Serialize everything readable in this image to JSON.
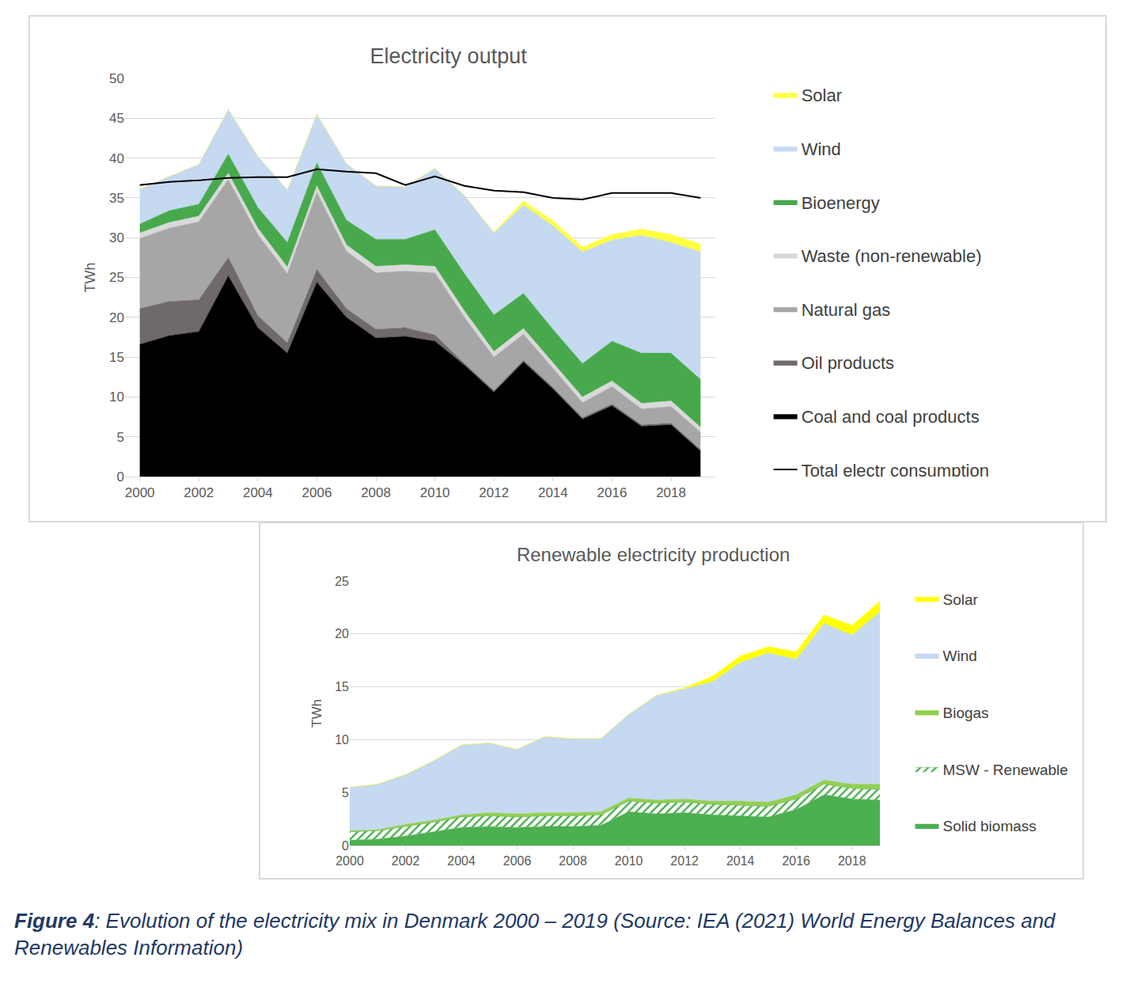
{
  "chart_data": [
    {
      "type": "area",
      "title": "Electricity output",
      "stacked": true,
      "grid": true,
      "legend": "right",
      "ylabel": "TWh",
      "x": [
        2000,
        2001,
        2002,
        2003,
        2004,
        2005,
        2006,
        2007,
        2008,
        2009,
        2010,
        2011,
        2012,
        2013,
        2014,
        2015,
        2016,
        2017,
        2018,
        2019
      ],
      "xlim": [
        1999.5,
        2019.5
      ],
      "xticks": [
        2000,
        2002,
        2004,
        2006,
        2008,
        2010,
        2012,
        2014,
        2016,
        2018
      ],
      "ylim": [
        0,
        50
      ],
      "yticks": [
        0,
        5,
        10,
        15,
        20,
        25,
        30,
        35,
        40,
        45,
        50
      ],
      "series": [
        {
          "name": "Coal and coal products",
          "color": "#000000",
          "values": [
            16.6,
            17.7,
            18.2,
            25.2,
            18.7,
            15.5,
            24.4,
            20.0,
            17.4,
            17.6,
            17.0,
            14.0,
            10.6,
            14.4,
            11.0,
            7.2,
            8.9,
            6.3,
            6.5,
            3.2
          ]
        },
        {
          "name": "Oil products",
          "color": "#6f6969",
          "values": [
            4.5,
            4.3,
            4.0,
            2.3,
            1.5,
            1.3,
            1.6,
            1.1,
            1.1,
            1.1,
            0.8,
            0.2,
            0.2,
            0.2,
            0.2,
            0.2,
            0.2,
            0.2,
            0.2,
            0.2
          ]
        },
        {
          "name": "Natural gas",
          "color": "#a6a6a6",
          "values": [
            8.8,
            9.2,
            9.8,
            9.8,
            10.2,
            8.7,
            9.7,
            7.2,
            7.1,
            7.1,
            7.8,
            5.8,
            4.2,
            3.3,
            2.4,
            1.9,
            2.2,
            2.0,
            2.1,
            2.2
          ]
        },
        {
          "name": "Waste (non-renewable)",
          "color": "#d9d9d9",
          "values": [
            0.7,
            0.7,
            0.7,
            0.8,
            0.8,
            0.8,
            0.8,
            0.8,
            0.8,
            0.8,
            0.8,
            0.8,
            0.7,
            0.7,
            0.7,
            0.7,
            0.7,
            0.7,
            0.7,
            0.6
          ]
        },
        {
          "name": "Bioenergy",
          "color": "#47a94c",
          "values": [
            1.1,
            1.5,
            1.5,
            2.4,
            2.6,
            3.1,
            2.9,
            3.1,
            3.4,
            3.2,
            4.6,
            4.7,
            4.6,
            4.4,
            4.2,
            4.2,
            5.0,
            6.3,
            6.0,
            6.0
          ]
        },
        {
          "name": "Wind",
          "color": "#c5d9f0",
          "values": [
            4.4,
            4.3,
            5.0,
            5.6,
            6.4,
            6.6,
            6.1,
            7.1,
            6.7,
            6.6,
            7.7,
            9.8,
            10.3,
            11.1,
            13.0,
            14.0,
            12.7,
            14.8,
            13.9,
            16.0
          ]
        },
        {
          "name": "Solar",
          "color": "#ffff40",
          "values": [
            0,
            0,
            0,
            0,
            0,
            0,
            0,
            0,
            0,
            0,
            0,
            0,
            0.1,
            0.5,
            0.6,
            0.6,
            0.7,
            0.8,
            1.0,
            1.0
          ]
        },
        {
          "name": "Total electr consumption",
          "type": "line",
          "color": "#000000",
          "values": [
            36.6,
            37.0,
            37.2,
            37.5,
            37.6,
            37.6,
            38.6,
            38.3,
            38.1,
            36.6,
            37.7,
            36.5,
            35.9,
            35.7,
            35.0,
            34.8,
            35.6,
            35.6,
            35.6,
            35.0
          ]
        }
      ]
    },
    {
      "type": "area",
      "title": "Renewable electricity production",
      "stacked": true,
      "grid": true,
      "legend": "right",
      "ylabel": "TWh",
      "x": [
        2000,
        2001,
        2002,
        2003,
        2004,
        2005,
        2006,
        2007,
        2008,
        2009,
        2010,
        2011,
        2012,
        2013,
        2014,
        2015,
        2016,
        2017,
        2018,
        2019
      ],
      "xlim": [
        2000,
        2019
      ],
      "xticks": [
        2000,
        2002,
        2004,
        2006,
        2008,
        2010,
        2012,
        2014,
        2016,
        2018
      ],
      "ylim": [
        0,
        25
      ],
      "yticks": [
        0,
        5,
        10,
        15,
        20,
        25
      ],
      "series": [
        {
          "name": "Solid biomass",
          "color": "#4caf50",
          "values": [
            0.5,
            0.6,
            0.9,
            1.3,
            1.7,
            1.8,
            1.7,
            1.8,
            1.8,
            1.9,
            3.2,
            3.0,
            3.1,
            2.9,
            2.8,
            2.7,
            3.4,
            4.8,
            4.4,
            4.3
          ]
        },
        {
          "name": "MSW - Renewable",
          "color": "#4caf50",
          "marker": "hatch",
          "values": [
            0.8,
            0.8,
            0.9,
            0.9,
            1.0,
            1.0,
            1.0,
            1.0,
            1.0,
            1.0,
            1.0,
            1.0,
            1.0,
            1.0,
            1.0,
            1.0,
            1.0,
            1.0,
            1.0,
            1.0
          ]
        },
        {
          "name": "Biogas",
          "color": "#92d050",
          "values": [
            0.1,
            0.1,
            0.2,
            0.2,
            0.2,
            0.3,
            0.3,
            0.3,
            0.3,
            0.3,
            0.3,
            0.3,
            0.3,
            0.3,
            0.4,
            0.4,
            0.4,
            0.4,
            0.4,
            0.5
          ]
        },
        {
          "name": "Wind",
          "color": "#c5d9f0",
          "values": [
            4.1,
            4.3,
            4.7,
            5.6,
            6.6,
            6.6,
            6.1,
            7.2,
            7.0,
            6.9,
            7.9,
            9.9,
            10.4,
            11.3,
            13.1,
            14.1,
            12.8,
            14.8,
            14.1,
            16.3
          ]
        },
        {
          "name": "Solar",
          "color": "#ffff00",
          "values": [
            0,
            0,
            0,
            0,
            0,
            0,
            0,
            0,
            0,
            0,
            0,
            0,
            0.1,
            0.5,
            0.6,
            0.6,
            0.7,
            0.8,
            0.9,
            1.0
          ]
        }
      ]
    }
  ],
  "caption": {
    "label": "Figure 4",
    "text": ": Evolution of the electricity mix in Denmark 2000 – 2019 (Source: IEA (2021) World Energy Balances and Renewables Information)"
  }
}
